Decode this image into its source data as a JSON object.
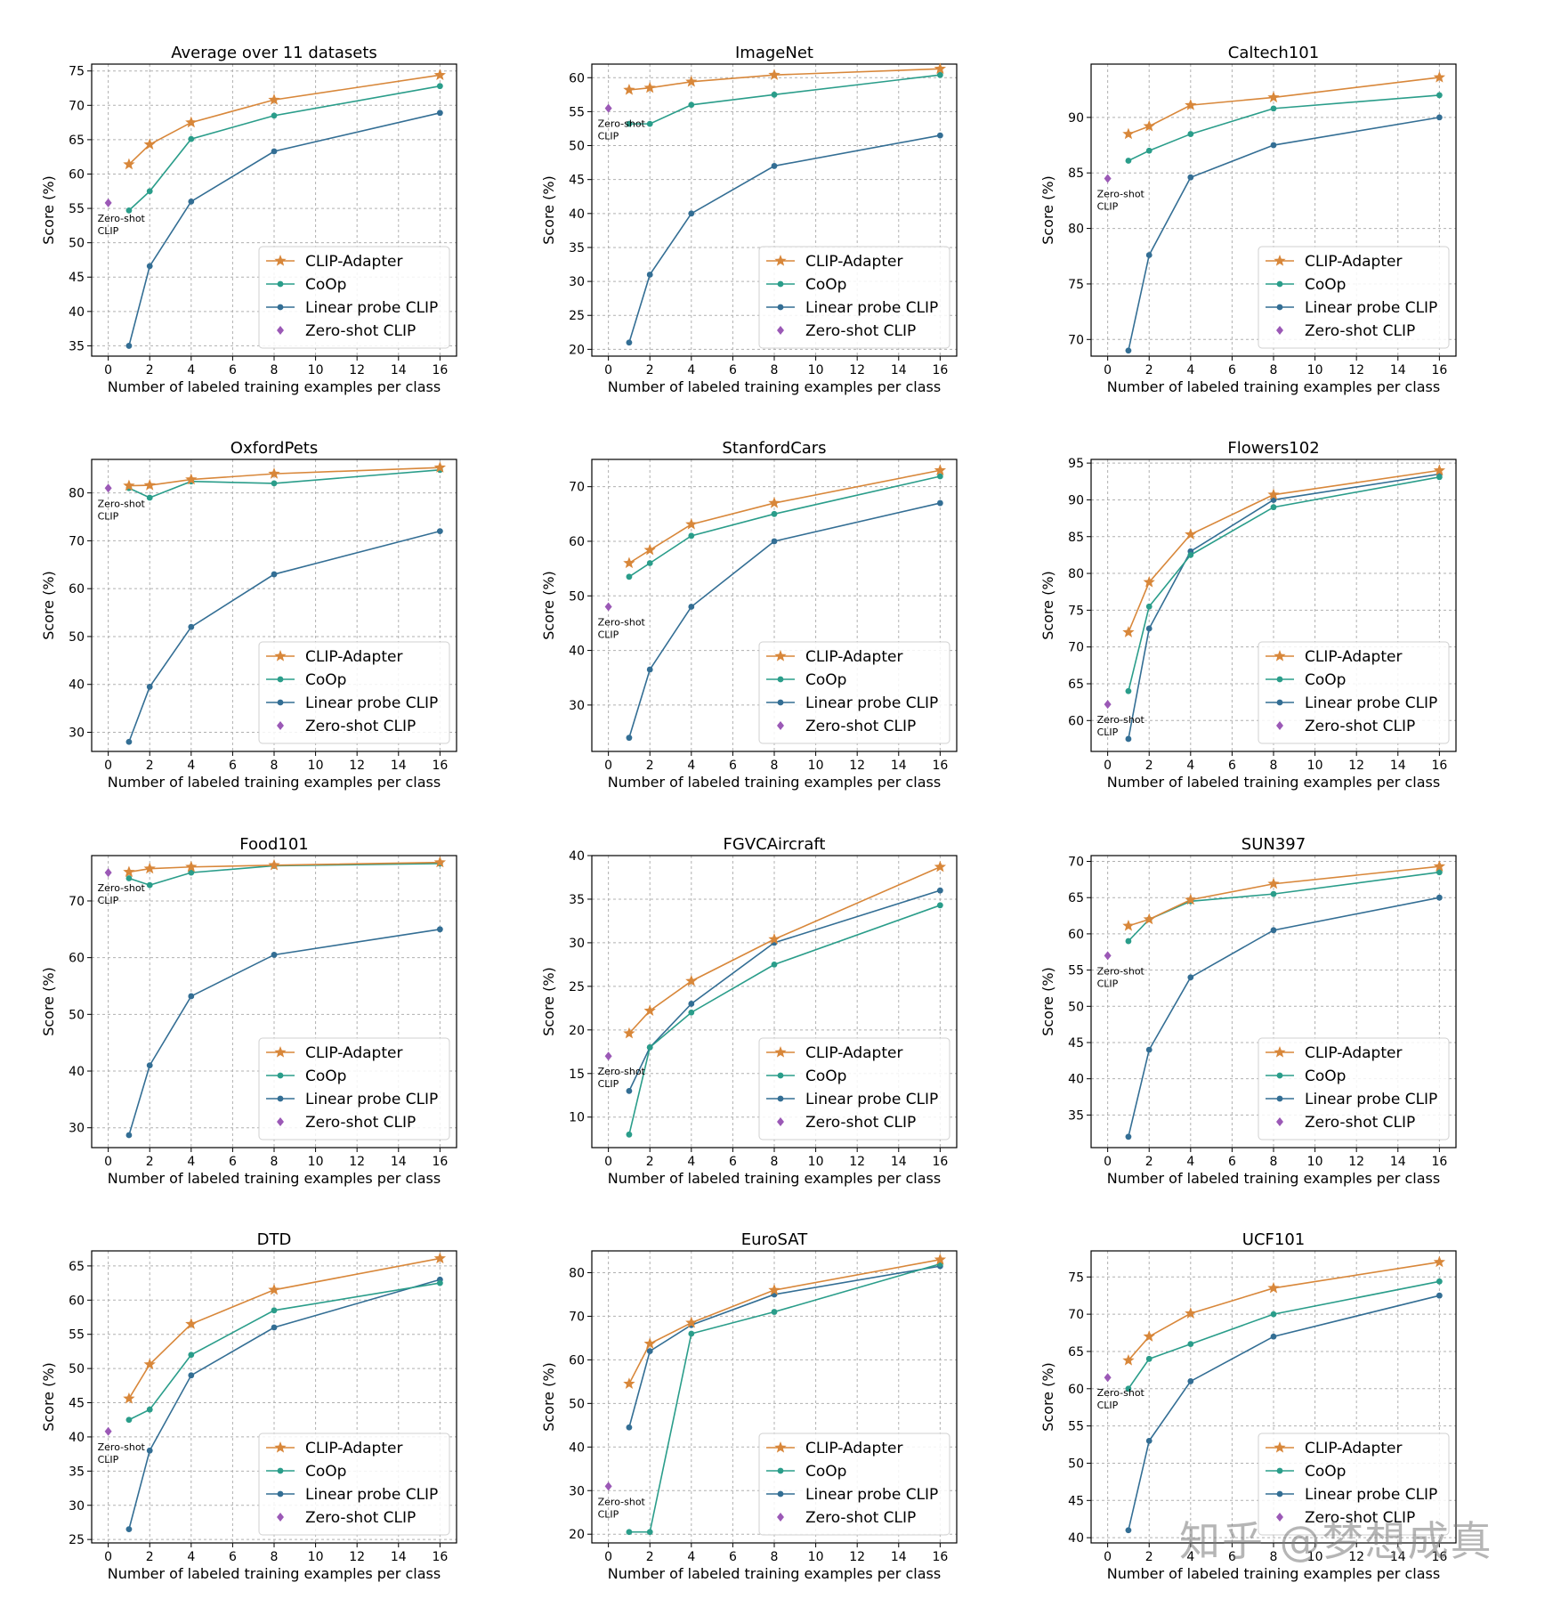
{
  "legend_labels": {
    "clip_adapter": "CLIP-Adapter",
    "coop": "CoOp",
    "linear_probe": "Linear probe CLIP",
    "zero_shot": "Zero-shot CLIP"
  },
  "zero_shot_annotation": [
    "Zero-shot",
    "CLIP"
  ],
  "xlabel": "Number of labeled training examples per class",
  "ylabel": "Score (%)",
  "x_ticks": [
    0,
    2,
    4,
    6,
    8,
    10,
    12,
    14,
    16
  ],
  "shots": [
    1,
    2,
    4,
    8,
    16
  ],
  "colors": {
    "clip_adapter": "#d8873a",
    "coop": "#2a9d8a",
    "linear_probe": "#336e94",
    "zero_shot": "#9b59b6"
  },
  "watermark": "知乎 @梦想成真",
  "chart_data": [
    {
      "type": "line",
      "title": "Average over 11 datasets",
      "ylim": [
        33.5,
        76
      ],
      "yticks": [
        35,
        40,
        45,
        50,
        55,
        60,
        65,
        70,
        75
      ],
      "series": [
        {
          "name": "CLIP-Adapter",
          "values": [
            61.4,
            64.3,
            67.5,
            70.8,
            74.4
          ]
        },
        {
          "name": "CoOp",
          "values": [
            54.7,
            57.5,
            65.1,
            68.5,
            72.8
          ]
        },
        {
          "name": "Linear probe CLIP",
          "values": [
            35.0,
            46.6,
            56.0,
            63.3,
            68.9
          ]
        }
      ],
      "zero_shot": 55.8
    },
    {
      "type": "line",
      "title": "ImageNet",
      "ylim": [
        19,
        62
      ],
      "yticks": [
        20,
        25,
        30,
        35,
        40,
        45,
        50,
        55,
        60
      ],
      "series": [
        {
          "name": "CLIP-Adapter",
          "values": [
            58.2,
            58.5,
            59.4,
            60.4,
            61.3
          ]
        },
        {
          "name": "CoOp",
          "values": [
            53.2,
            53.2,
            56.0,
            57.5,
            60.4
          ]
        },
        {
          "name": "Linear probe CLIP",
          "values": [
            21.0,
            31.0,
            40.0,
            47.0,
            51.5
          ]
        }
      ],
      "zero_shot": 55.5
    },
    {
      "type": "line",
      "title": "Caltech101",
      "ylim": [
        68.5,
        94.8
      ],
      "yticks": [
        70,
        75,
        80,
        85,
        90
      ],
      "series": [
        {
          "name": "CLIP-Adapter",
          "values": [
            88.5,
            89.2,
            91.1,
            91.8,
            93.6
          ]
        },
        {
          "name": "CoOp",
          "values": [
            86.1,
            87.0,
            88.5,
            90.8,
            92.0
          ]
        },
        {
          "name": "Linear probe CLIP",
          "values": [
            69.0,
            77.6,
            84.6,
            87.5,
            90.0
          ]
        }
      ],
      "zero_shot": 84.5
    },
    {
      "type": "line",
      "title": "OxfordPets",
      "ylim": [
        26,
        87
      ],
      "yticks": [
        30,
        40,
        50,
        60,
        70,
        80
      ],
      "series": [
        {
          "name": "CLIP-Adapter",
          "values": [
            81.5,
            81.6,
            82.8,
            84.0,
            85.3
          ]
        },
        {
          "name": "CoOp",
          "values": [
            81.0,
            79.0,
            82.4,
            82.0,
            84.8
          ]
        },
        {
          "name": "Linear probe CLIP",
          "values": [
            28.0,
            39.5,
            52.0,
            63.0,
            72.0
          ]
        }
      ],
      "zero_shot": 81.0
    },
    {
      "type": "line",
      "title": "StanfordCars",
      "ylim": [
        21.5,
        75
      ],
      "yticks": [
        30,
        40,
        50,
        60,
        70
      ],
      "series": [
        {
          "name": "CLIP-Adapter",
          "values": [
            56.0,
            58.4,
            63.1,
            67.0,
            73.0
          ]
        },
        {
          "name": "CoOp",
          "values": [
            53.5,
            56.0,
            61.0,
            65.0,
            71.9
          ]
        },
        {
          "name": "Linear probe CLIP",
          "values": [
            24.0,
            36.5,
            48.0,
            60.0,
            67.0
          ]
        }
      ],
      "zero_shot": 48.0
    },
    {
      "type": "line",
      "title": "Flowers102",
      "ylim": [
        55.8,
        95.5
      ],
      "yticks": [
        60,
        65,
        70,
        75,
        80,
        85,
        90,
        95
      ],
      "series": [
        {
          "name": "CLIP-Adapter",
          "values": [
            72.0,
            78.8,
            85.3,
            90.7,
            94.0
          ]
        },
        {
          "name": "CoOp",
          "values": [
            64.0,
            75.5,
            82.5,
            89.0,
            93.1
          ]
        },
        {
          "name": "Linear probe CLIP",
          "values": [
            57.5,
            72.5,
            83.0,
            90.0,
            93.5
          ]
        }
      ],
      "zero_shot": 62.2
    },
    {
      "type": "line",
      "title": "Food101",
      "ylim": [
        26.5,
        78
      ],
      "yticks": [
        30,
        40,
        50,
        60,
        70
      ],
      "series": [
        {
          "name": "CLIP-Adapter",
          "values": [
            75.1,
            75.7,
            76.0,
            76.3,
            76.8
          ]
        },
        {
          "name": "CoOp",
          "values": [
            74.0,
            72.8,
            75.0,
            76.2,
            76.6
          ]
        },
        {
          "name": "Linear probe CLIP",
          "values": [
            28.7,
            41.0,
            53.2,
            60.5,
            65.0
          ]
        }
      ],
      "zero_shot": 75.0
    },
    {
      "type": "line",
      "title": "FGVCAircraft",
      "ylim": [
        6.5,
        40
      ],
      "yticks": [
        10,
        15,
        20,
        25,
        30,
        35,
        40
      ],
      "series": [
        {
          "name": "CLIP-Adapter",
          "values": [
            19.6,
            22.2,
            25.6,
            30.4,
            38.7
          ]
        },
        {
          "name": "CoOp",
          "values": [
            8.0,
            18.0,
            22.0,
            27.5,
            34.3
          ]
        },
        {
          "name": "Linear probe CLIP",
          "values": [
            13.0,
            18.0,
            23.0,
            30.0,
            36.0
          ]
        }
      ],
      "zero_shot": 17.0
    },
    {
      "type": "line",
      "title": "SUN397",
      "ylim": [
        30.5,
        70.8
      ],
      "yticks": [
        35,
        40,
        45,
        50,
        55,
        60,
        65,
        70
      ],
      "series": [
        {
          "name": "CLIP-Adapter",
          "values": [
            61.1,
            62.0,
            64.7,
            66.9,
            69.3
          ]
        },
        {
          "name": "CoOp",
          "values": [
            59.0,
            62.0,
            64.5,
            65.5,
            68.5
          ]
        },
        {
          "name": "Linear probe CLIP",
          "values": [
            32.0,
            44.0,
            54.0,
            60.5,
            65.0
          ]
        }
      ],
      "zero_shot": 57.0
    },
    {
      "type": "line",
      "title": "DTD",
      "ylim": [
        24.5,
        67.2
      ],
      "yticks": [
        25,
        30,
        35,
        40,
        45,
        50,
        55,
        60,
        65
      ],
      "series": [
        {
          "name": "CLIP-Adapter",
          "values": [
            45.6,
            50.6,
            56.5,
            61.5,
            66.1
          ]
        },
        {
          "name": "CoOp",
          "values": [
            42.5,
            44.0,
            52.0,
            58.5,
            62.5
          ]
        },
        {
          "name": "Linear probe CLIP",
          "values": [
            26.5,
            38.0,
            49.0,
            56.0,
            63.0
          ]
        }
      ],
      "zero_shot": 40.8
    },
    {
      "type": "line",
      "title": "EuroSAT",
      "ylim": [
        18,
        85
      ],
      "yticks": [
        20,
        30,
        40,
        50,
        60,
        70,
        80
      ],
      "series": [
        {
          "name": "CLIP-Adapter",
          "values": [
            54.5,
            63.7,
            68.5,
            76.0,
            83.0
          ]
        },
        {
          "name": "CoOp",
          "values": [
            20.5,
            20.5,
            66.0,
            71.0,
            82.0
          ]
        },
        {
          "name": "Linear probe CLIP",
          "values": [
            44.5,
            62.0,
            68.0,
            75.0,
            81.5
          ]
        }
      ],
      "zero_shot": 31.0
    },
    {
      "type": "line",
      "title": "UCF101",
      "ylim": [
        39.3,
        78.5
      ],
      "yticks": [
        40,
        45,
        50,
        55,
        60,
        65,
        70,
        75
      ],
      "series": [
        {
          "name": "CLIP-Adapter",
          "values": [
            63.8,
            67.0,
            70.1,
            73.5,
            77.0
          ]
        },
        {
          "name": "CoOp",
          "values": [
            60.0,
            64.0,
            66.0,
            70.0,
            74.4
          ]
        },
        {
          "name": "Linear probe CLIP",
          "values": [
            41.0,
            53.0,
            61.0,
            67.0,
            72.5
          ]
        }
      ],
      "zero_shot": 61.5
    }
  ]
}
